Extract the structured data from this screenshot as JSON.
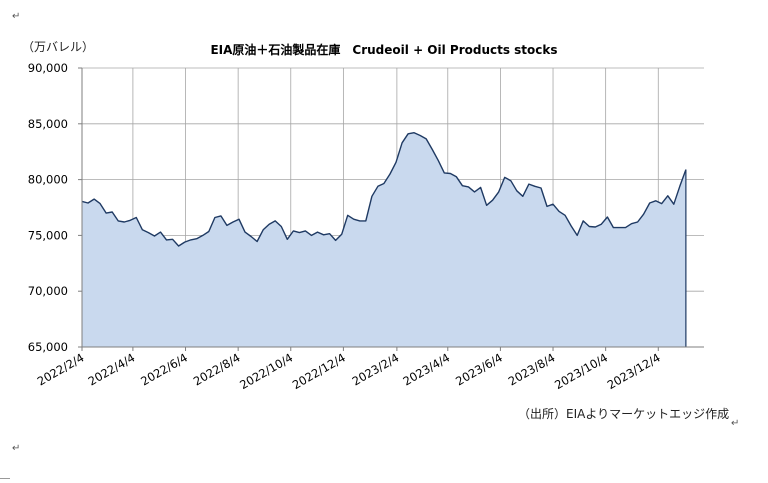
{
  "unit_label": "（万バレル）",
  "title": "EIA原油＋石油製品在庫　Crudeoil + Oil Products stocks",
  "source_note": "（出所）EIAよりマーケットエッジ作成",
  "paragraph_mark": "↵",
  "colors": {
    "fill": "#c9d9ee",
    "line": "#1f3a63",
    "grid": "#a6a6a6",
    "axis": "#7f7f7f"
  },
  "chart_data": {
    "type": "area",
    "title": "EIA原油＋石油製品在庫　Crudeoil + Oil Products stocks",
    "ylabel": "（万バレル）",
    "xlabel": "",
    "ylim": [
      65000,
      90000
    ],
    "y_ticks": [
      "65,000",
      "70,000",
      "75,000",
      "80,000",
      "85,000",
      "90,000"
    ],
    "y_tick_values": [
      65000,
      70000,
      75000,
      80000,
      85000,
      90000
    ],
    "x_tick_labels": [
      "2022/2/4",
      "2022/4/4",
      "2022/6/4",
      "2022/8/4",
      "2022/10/4",
      "2022/12/4",
      "2023/2/4",
      "2023/4/4",
      "2023/6/4",
      "2023/8/4",
      "2023/10/4",
      "2023/12/4"
    ],
    "grid": true,
    "legend": "none",
    "x_start": "2022/2/4",
    "x_end": "2024/1/26",
    "x_interval": "weekly",
    "values": [
      78050,
      77900,
      78250,
      77850,
      77000,
      77100,
      76300,
      76200,
      76350,
      76600,
      75500,
      75250,
      74950,
      75300,
      74600,
      74650,
      74050,
      74400,
      74600,
      74700,
      75000,
      75350,
      76600,
      76750,
      75900,
      76200,
      76450,
      75300,
      74900,
      74450,
      75500,
      76000,
      76300,
      75800,
      74650,
      75400,
      75250,
      75400,
      75000,
      75300,
      75050,
      75150,
      74550,
      75100,
      76800,
      76450,
      76300,
      76300,
      78500,
      79400,
      79650,
      80500,
      81550,
      83300,
      84100,
      84200,
      83950,
      83650,
      82700,
      81700,
      80600,
      80550,
      80250,
      79450,
      79350,
      78900,
      79300,
      77700,
      78150,
      78900,
      80200,
      79900,
      79000,
      78500,
      79600,
      79400,
      79250,
      77600,
      77800,
      77150,
      76800,
      75850,
      75000,
      76300,
      75800,
      75750,
      76000,
      76650,
      75700,
      75700,
      75700,
      76050,
      76200,
      76900,
      77900,
      78100,
      77850,
      78550,
      77800,
      79400,
      80900
    ]
  }
}
